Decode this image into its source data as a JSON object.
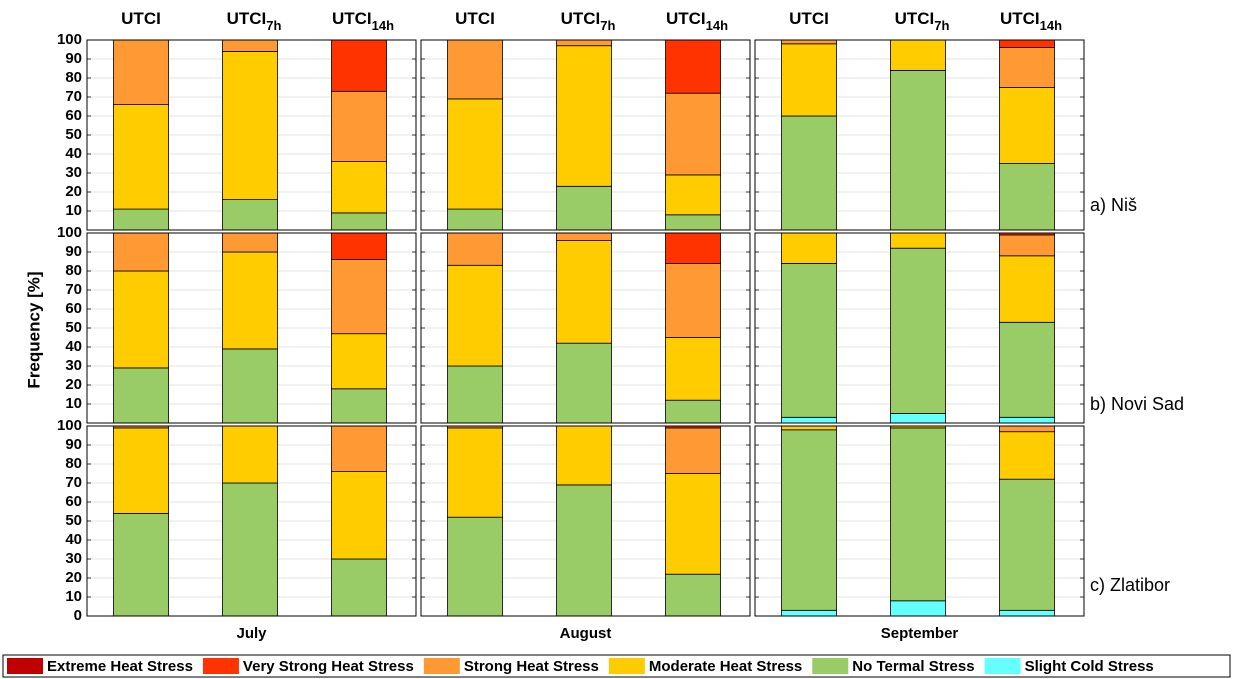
{
  "chart_data": {
    "type": "bar",
    "stacked": true,
    "ylabel": "Frequency [%]",
    "categories": [
      {
        "text": "UTCI"
      },
      {
        "text": "UTCI",
        "sub": "7h"
      },
      {
        "text": "UTCI",
        "sub": "14h"
      }
    ],
    "months": [
      "July",
      "August",
      "September"
    ],
    "cities": [
      "a) Niš",
      "b) Novi Sad",
      "c) Zlatibor"
    ],
    "ylim": [
      0,
      100
    ],
    "yticks": [
      [
        10,
        20,
        30,
        40,
        50,
        60,
        70,
        80,
        90,
        100
      ],
      [
        10,
        20,
        30,
        40,
        50,
        60,
        70,
        80,
        90,
        100
      ],
      [
        0,
        10,
        20,
        30,
        40,
        50,
        60,
        70,
        80,
        90,
        100
      ]
    ],
    "grid": true,
    "series": [
      {
        "name": "Extreme Heat Stress",
        "color": "#c00000",
        "values": [
          [
            [
              0,
              0,
              0
            ],
            [
              0,
              0,
              0
            ],
            [
              0,
              0,
              0
            ]
          ],
          [
            [
              0,
              0,
              0
            ],
            [
              0,
              0,
              0
            ],
            [
              0,
              0,
              0
            ]
          ],
          [
            [
              0,
              0,
              0
            ],
            [
              0,
              0,
              0
            ],
            [
              0,
              0,
              0
            ]
          ]
        ]
      },
      {
        "name": "Very Strong Heat Stress",
        "color": "#ff3300",
        "values": [
          [
            [
              0,
              0,
              27
            ],
            [
              0,
              0,
              28
            ],
            [
              0,
              0,
              4
            ]
          ],
          [
            [
              0,
              0,
              14
            ],
            [
              0,
              0,
              16
            ],
            [
              0,
              0,
              1
            ]
          ],
          [
            [
              0,
              0,
              0
            ],
            [
              0,
              0,
              1
            ],
            [
              0,
              0,
              0
            ]
          ]
        ]
      },
      {
        "name": "Strong Heat Stress",
        "color": "#ff9933",
        "values": [
          [
            [
              34,
              6,
              37
            ],
            [
              31,
              3,
              43
            ],
            [
              2,
              0,
              21
            ]
          ],
          [
            [
              20,
              10,
              39
            ],
            [
              17,
              4,
              39
            ],
            [
              0,
              0,
              11
            ]
          ],
          [
            [
              1,
              0,
              24
            ],
            [
              1,
              0,
              24
            ],
            [
              0,
              0,
              3
            ]
          ]
        ]
      },
      {
        "name": "Moderate Heat Stress",
        "color": "#ffcc00",
        "values": [
          [
            [
              55,
              78,
              27
            ],
            [
              58,
              74,
              21
            ],
            [
              38,
              16,
              40
            ]
          ],
          [
            [
              51,
              51,
              29
            ],
            [
              53,
              54,
              33
            ],
            [
              16,
              8,
              35
            ]
          ],
          [
            [
              45,
              30,
              46
            ],
            [
              47,
              31,
              53
            ],
            [
              2,
              1,
              25
            ]
          ]
        ]
      },
      {
        "name": "No Termal Stress",
        "color": "#99cc66",
        "values": [
          [
            [
              11,
              16,
              9
            ],
            [
              11,
              23,
              8
            ],
            [
              60,
              84,
              35
            ]
          ],
          [
            [
              29,
              39,
              18
            ],
            [
              30,
              42,
              12
            ],
            [
              81,
              87,
              50
            ]
          ],
          [
            [
              54,
              70,
              30
            ],
            [
              52,
              69,
              22
            ],
            [
              95,
              91,
              69
            ]
          ]
        ]
      },
      {
        "name": "Slight Cold Stress",
        "color": "#66ffff",
        "values": [
          [
            [
              0,
              0,
              0
            ],
            [
              0,
              0,
              0
            ],
            [
              0,
              0,
              0
            ]
          ],
          [
            [
              0,
              0,
              0
            ],
            [
              0,
              0,
              0
            ],
            [
              3,
              5,
              3
            ]
          ],
          [
            [
              0,
              0,
              0
            ],
            [
              0,
              0,
              0
            ],
            [
              3,
              8,
              3
            ]
          ]
        ]
      }
    ]
  }
}
